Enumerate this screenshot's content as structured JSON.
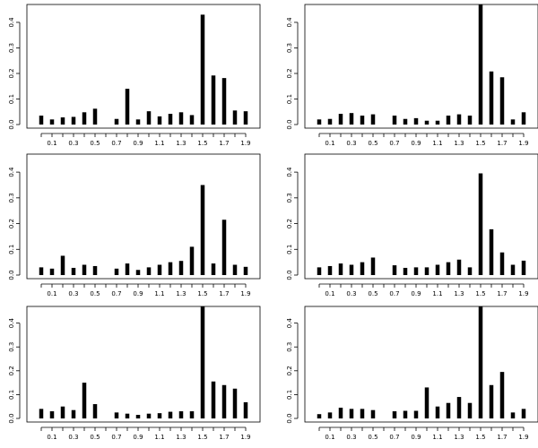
{
  "chart_data": [
    {
      "type": "bar",
      "panel": "top-left",
      "x": [
        0.0,
        0.1,
        0.2,
        0.3,
        0.4,
        0.5,
        0.7,
        0.8,
        0.9,
        1.0,
        1.1,
        1.2,
        1.3,
        1.4,
        1.5,
        1.6,
        1.7,
        1.8,
        1.9
      ],
      "values": [
        0.035,
        0.02,
        0.028,
        0.03,
        0.048,
        0.062,
        0.022,
        0.14,
        0.02,
        0.052,
        0.032,
        0.042,
        0.048,
        0.037,
        0.43,
        0.192,
        0.182,
        0.055,
        0.052
      ],
      "xtick_labels": [
        "0.1",
        "0.3",
        "0.5",
        "0.7",
        "0.9",
        "1.1",
        "1.3",
        "1.5",
        "1.7",
        "1.9"
      ],
      "ytick_labels": [
        "0.0",
        "0.1",
        "0.2",
        "0.3",
        "0.4"
      ],
      "ylim": [
        0,
        0.47
      ],
      "title": "",
      "xlabel": "",
      "ylabel": ""
    },
    {
      "type": "bar",
      "panel": "top-right",
      "x": [
        0.0,
        0.1,
        0.2,
        0.3,
        0.4,
        0.5,
        0.7,
        0.8,
        0.9,
        1.0,
        1.1,
        1.2,
        1.3,
        1.4,
        1.5,
        1.6,
        1.7,
        1.8,
        1.9
      ],
      "values": [
        0.02,
        0.022,
        0.042,
        0.045,
        0.035,
        0.04,
        0.035,
        0.022,
        0.025,
        0.015,
        0.015,
        0.035,
        0.04,
        0.035,
        0.47,
        0.208,
        0.185,
        0.02,
        0.048
      ],
      "xtick_labels": [
        "0.1",
        "0.3",
        "0.5",
        "0.7",
        "0.9",
        "1.1",
        "1.3",
        "1.5",
        "1.7",
        "1.9"
      ],
      "ytick_labels": [
        "0.0",
        "0.1",
        "0.2",
        "0.3",
        "0.4"
      ],
      "ylim": [
        0,
        0.47
      ],
      "title": "",
      "xlabel": "",
      "ylabel": ""
    },
    {
      "type": "bar",
      "panel": "middle-left",
      "x": [
        0.0,
        0.1,
        0.2,
        0.3,
        0.4,
        0.5,
        0.7,
        0.8,
        0.9,
        1.0,
        1.1,
        1.2,
        1.3,
        1.4,
        1.5,
        1.6,
        1.7,
        1.8,
        1.9
      ],
      "values": [
        0.03,
        0.025,
        0.075,
        0.028,
        0.04,
        0.035,
        0.025,
        0.045,
        0.02,
        0.03,
        0.04,
        0.05,
        0.055,
        0.11,
        0.35,
        0.045,
        0.215,
        0.04,
        0.032
      ],
      "xtick_labels": [
        "0.1",
        "0.3",
        "0.5",
        "0.7",
        "0.9",
        "1.1",
        "1.3",
        "1.5",
        "1.7",
        "1.9"
      ],
      "ytick_labels": [
        "0.0",
        "0.1",
        "0.2",
        "0.3",
        "0.4"
      ],
      "ylim": [
        0,
        0.47
      ],
      "title": "",
      "xlabel": "",
      "ylabel": ""
    },
    {
      "type": "bar",
      "panel": "middle-right",
      "x": [
        0.0,
        0.1,
        0.2,
        0.3,
        0.4,
        0.5,
        0.7,
        0.8,
        0.9,
        1.0,
        1.1,
        1.2,
        1.3,
        1.4,
        1.5,
        1.6,
        1.7,
        1.8,
        1.9
      ],
      "values": [
        0.03,
        0.035,
        0.045,
        0.04,
        0.05,
        0.068,
        0.038,
        0.028,
        0.03,
        0.03,
        0.04,
        0.05,
        0.06,
        0.03,
        0.395,
        0.178,
        0.088,
        0.04,
        0.056
      ],
      "xtick_labels": [
        "0.1",
        "0.3",
        "0.5",
        "0.7",
        "0.9",
        "1.1",
        "1.3",
        "1.5",
        "1.7",
        "1.9"
      ],
      "ytick_labels": [
        "0.0",
        "0.1",
        "0.2",
        "0.3",
        "0.4"
      ],
      "ylim": [
        0,
        0.47
      ],
      "title": "",
      "xlabel": "",
      "ylabel": ""
    },
    {
      "type": "bar",
      "panel": "bottom-left",
      "x": [
        0.0,
        0.1,
        0.2,
        0.3,
        0.4,
        0.5,
        0.7,
        0.8,
        0.9,
        1.0,
        1.1,
        1.2,
        1.3,
        1.4,
        1.5,
        1.6,
        1.7,
        1.8,
        1.9
      ],
      "values": [
        0.04,
        0.03,
        0.05,
        0.035,
        0.15,
        0.06,
        0.025,
        0.02,
        0.015,
        0.02,
        0.022,
        0.028,
        0.03,
        0.03,
        0.47,
        0.155,
        0.14,
        0.125,
        0.068
      ],
      "xtick_labels": [
        "0.1",
        "0.3",
        "0.5",
        "0.7",
        "0.9",
        "1.1",
        "1.3",
        "1.5",
        "1.7",
        "1.9"
      ],
      "ytick_labels": [
        "0.0",
        "0.1",
        "0.2",
        "0.3",
        "0.4"
      ],
      "ylim": [
        0,
        0.47
      ],
      "title": "",
      "xlabel": "",
      "ylabel": ""
    },
    {
      "type": "bar",
      "panel": "bottom-right",
      "x": [
        0.0,
        0.1,
        0.2,
        0.3,
        0.4,
        0.5,
        0.7,
        0.8,
        0.9,
        1.0,
        1.1,
        1.2,
        1.3,
        1.4,
        1.5,
        1.6,
        1.7,
        1.8,
        1.9
      ],
      "values": [
        0.018,
        0.025,
        0.045,
        0.04,
        0.04,
        0.035,
        0.03,
        0.032,
        0.032,
        0.13,
        0.05,
        0.065,
        0.09,
        0.065,
        0.47,
        0.14,
        0.195,
        0.025,
        0.04
      ],
      "xtick_labels": [
        "0.1",
        "0.3",
        "0.5",
        "0.7",
        "0.9",
        "1.1",
        "1.3",
        "1.5",
        "1.7",
        "1.9"
      ],
      "ytick_labels": [
        "0.0",
        "0.1",
        "0.2",
        "0.3",
        "0.4"
      ],
      "ylim": [
        0,
        0.47
      ],
      "title": "",
      "xlabel": "",
      "ylabel": ""
    }
  ]
}
